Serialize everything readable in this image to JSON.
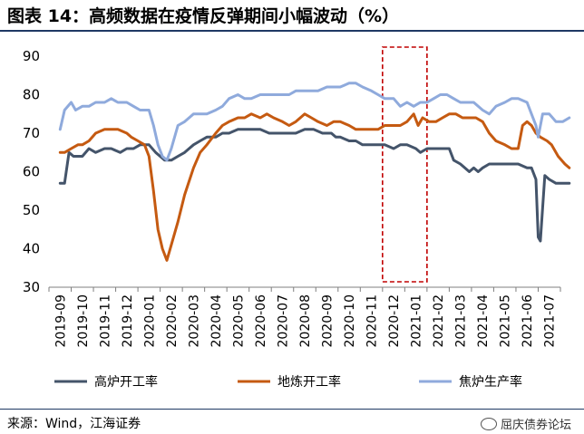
{
  "title": "图表 14：高频数据在疫情反弹期间小幅波动（%）",
  "source": "来源：Wind，江海证券",
  "watermark": "屈庆债券论坛",
  "chart_data": {
    "type": "line",
    "ylim": [
      30,
      90
    ],
    "yticks": [
      "90",
      "80",
      "70",
      "60",
      "50",
      "40",
      "30"
    ],
    "xticks": [
      "2019-09",
      "2019-10",
      "2019-11",
      "2019-12",
      "2020-01",
      "2020-02",
      "2020-03",
      "2020-04",
      "2020-05",
      "2020-06",
      "2020-07",
      "2020-08",
      "2020-09",
      "2020-10",
      "2020-11",
      "2020-12",
      "2021-01",
      "2021-02",
      "2021-03",
      "2021-04",
      "2021-05",
      "2021-06",
      "2021-07"
    ],
    "highlight": {
      "from": "2020-12",
      "to": "2021-01",
      "style": "red dashed box"
    },
    "legend_position": "bottom",
    "series": [
      {
        "name": "高炉开工率",
        "color": "#44546a",
        "points": [
          [
            0,
            57
          ],
          [
            0.2,
            57
          ],
          [
            0.4,
            65
          ],
          [
            0.6,
            64
          ],
          [
            1,
            64
          ],
          [
            1.3,
            66
          ],
          [
            1.6,
            65
          ],
          [
            2,
            66
          ],
          [
            2.3,
            66
          ],
          [
            2.7,
            65
          ],
          [
            3,
            66
          ],
          [
            3.3,
            66
          ],
          [
            3.6,
            67
          ],
          [
            4,
            67
          ],
          [
            4.3,
            65
          ],
          [
            4.5,
            64
          ],
          [
            4.7,
            63
          ],
          [
            5,
            63
          ],
          [
            5.3,
            64
          ],
          [
            5.6,
            65
          ],
          [
            5.8,
            66
          ],
          [
            6,
            67
          ],
          [
            6.3,
            68
          ],
          [
            6.6,
            69
          ],
          [
            7,
            69
          ],
          [
            7.3,
            70
          ],
          [
            7.6,
            70
          ],
          [
            8,
            71
          ],
          [
            8.3,
            71
          ],
          [
            8.6,
            71
          ],
          [
            9,
            71
          ],
          [
            9.4,
            70
          ],
          [
            9.8,
            70
          ],
          [
            10.2,
            70
          ],
          [
            10.6,
            70
          ],
          [
            11,
            71
          ],
          [
            11.4,
            71
          ],
          [
            11.8,
            70
          ],
          [
            12.2,
            70
          ],
          [
            12.4,
            69
          ],
          [
            12.6,
            69
          ],
          [
            13,
            68
          ],
          [
            13.3,
            68
          ],
          [
            13.6,
            67
          ],
          [
            14,
            67
          ],
          [
            14.3,
            67
          ],
          [
            14.6,
            67
          ],
          [
            15,
            66
          ],
          [
            15.3,
            67
          ],
          [
            15.6,
            67
          ],
          [
            16,
            66
          ],
          [
            16.2,
            65
          ],
          [
            16.5,
            66
          ],
          [
            16.8,
            66
          ],
          [
            17,
            66
          ],
          [
            17.3,
            66
          ],
          [
            17.5,
            66
          ],
          [
            17.7,
            63
          ],
          [
            18,
            62
          ],
          [
            18.2,
            61
          ],
          [
            18.4,
            60
          ],
          [
            18.6,
            61
          ],
          [
            18.8,
            60
          ],
          [
            19,
            61
          ],
          [
            19.3,
            62
          ],
          [
            19.6,
            62
          ],
          [
            20,
            62
          ],
          [
            20.3,
            62
          ],
          [
            20.6,
            62
          ],
          [
            21,
            61
          ],
          [
            21.2,
            61
          ],
          [
            21.4,
            58
          ],
          [
            21.5,
            43
          ],
          [
            21.6,
            42
          ],
          [
            21.8,
            59
          ],
          [
            22,
            58
          ],
          [
            22.3,
            57
          ],
          [
            22.6,
            57
          ],
          [
            22.9,
            57
          ]
        ]
      },
      {
        "name": "地炼开工率",
        "color": "#c55a11",
        "points": [
          [
            0,
            65
          ],
          [
            0.2,
            65
          ],
          [
            0.5,
            66
          ],
          [
            0.8,
            67
          ],
          [
            1,
            67
          ],
          [
            1.3,
            68
          ],
          [
            1.6,
            70
          ],
          [
            2,
            71
          ],
          [
            2.3,
            71
          ],
          [
            2.6,
            71
          ],
          [
            3,
            70
          ],
          [
            3.2,
            69
          ],
          [
            3.5,
            68
          ],
          [
            3.8,
            67
          ],
          [
            4,
            64
          ],
          [
            4.2,
            55
          ],
          [
            4.4,
            45
          ],
          [
            4.6,
            40
          ],
          [
            4.8,
            37
          ],
          [
            5,
            41
          ],
          [
            5.3,
            47
          ],
          [
            5.6,
            54
          ],
          [
            6,
            61
          ],
          [
            6.3,
            65
          ],
          [
            6.6,
            67
          ],
          [
            7,
            70
          ],
          [
            7.3,
            72
          ],
          [
            7.6,
            73
          ],
          [
            8,
            74
          ],
          [
            8.3,
            74
          ],
          [
            8.6,
            75
          ],
          [
            9,
            74
          ],
          [
            9.3,
            75
          ],
          [
            9.6,
            74
          ],
          [
            10,
            73
          ],
          [
            10.3,
            72
          ],
          [
            10.6,
            73
          ],
          [
            11,
            75
          ],
          [
            11.3,
            74
          ],
          [
            11.6,
            73
          ],
          [
            12,
            72
          ],
          [
            12.3,
            73
          ],
          [
            12.6,
            73
          ],
          [
            13,
            72
          ],
          [
            13.3,
            71
          ],
          [
            13.6,
            71
          ],
          [
            14,
            71
          ],
          [
            14.3,
            71
          ],
          [
            14.6,
            72
          ],
          [
            15,
            72
          ],
          [
            15.3,
            72
          ],
          [
            15.6,
            73
          ],
          [
            15.9,
            75
          ],
          [
            16.1,
            72
          ],
          [
            16.3,
            74
          ],
          [
            16.6,
            73
          ],
          [
            16.9,
            73
          ],
          [
            17.2,
            74
          ],
          [
            17.5,
            75
          ],
          [
            17.8,
            75
          ],
          [
            18.1,
            74
          ],
          [
            18.4,
            74
          ],
          [
            18.7,
            74
          ],
          [
            19,
            73
          ],
          [
            19.3,
            70
          ],
          [
            19.6,
            68
          ],
          [
            20,
            67
          ],
          [
            20.3,
            66
          ],
          [
            20.6,
            66
          ],
          [
            20.8,
            72
          ],
          [
            21,
            73
          ],
          [
            21.2,
            72
          ],
          [
            21.4,
            70
          ],
          [
            21.6,
            69
          ],
          [
            21.9,
            68
          ],
          [
            22.1,
            67
          ],
          [
            22.4,
            64
          ],
          [
            22.7,
            62
          ],
          [
            22.9,
            61
          ]
        ]
      },
      {
        "name": "焦炉生产率",
        "color": "#8faadc",
        "points": [
          [
            0,
            71
          ],
          [
            0.2,
            76
          ],
          [
            0.5,
            78
          ],
          [
            0.7,
            76
          ],
          [
            1,
            77
          ],
          [
            1.3,
            77
          ],
          [
            1.6,
            78
          ],
          [
            2,
            78
          ],
          [
            2.3,
            79
          ],
          [
            2.6,
            78
          ],
          [
            3,
            78
          ],
          [
            3.3,
            77
          ],
          [
            3.6,
            76
          ],
          [
            4,
            76
          ],
          [
            4.2,
            72
          ],
          [
            4.4,
            67
          ],
          [
            4.6,
            64
          ],
          [
            4.8,
            63
          ],
          [
            5,
            66
          ],
          [
            5.3,
            72
          ],
          [
            5.6,
            73
          ],
          [
            6,
            75
          ],
          [
            6.3,
            75
          ],
          [
            6.6,
            75
          ],
          [
            7,
            76
          ],
          [
            7.3,
            77
          ],
          [
            7.6,
            79
          ],
          [
            8,
            80
          ],
          [
            8.3,
            79
          ],
          [
            8.6,
            79
          ],
          [
            9,
            80
          ],
          [
            9.3,
            80
          ],
          [
            9.6,
            80
          ],
          [
            10,
            80
          ],
          [
            10.3,
            80
          ],
          [
            10.6,
            81
          ],
          [
            11,
            81
          ],
          [
            11.3,
            81
          ],
          [
            11.6,
            81
          ],
          [
            12,
            82
          ],
          [
            12.3,
            82
          ],
          [
            12.6,
            82
          ],
          [
            13,
            83
          ],
          [
            13.3,
            83
          ],
          [
            13.6,
            82
          ],
          [
            14,
            81
          ],
          [
            14.3,
            80
          ],
          [
            14.6,
            79
          ],
          [
            15,
            79
          ],
          [
            15.3,
            77
          ],
          [
            15.6,
            78
          ],
          [
            15.9,
            77
          ],
          [
            16.2,
            78
          ],
          [
            16.5,
            78
          ],
          [
            16.8,
            79
          ],
          [
            17.1,
            80
          ],
          [
            17.4,
            80
          ],
          [
            17.7,
            79
          ],
          [
            18,
            78
          ],
          [
            18.3,
            78
          ],
          [
            18.6,
            78
          ],
          [
            19,
            76
          ],
          [
            19.3,
            75
          ],
          [
            19.6,
            77
          ],
          [
            20,
            78
          ],
          [
            20.3,
            79
          ],
          [
            20.6,
            79
          ],
          [
            21,
            78
          ],
          [
            21.2,
            75
          ],
          [
            21.4,
            72
          ],
          [
            21.5,
            69
          ],
          [
            21.7,
            75
          ],
          [
            22,
            75
          ],
          [
            22.3,
            73
          ],
          [
            22.6,
            73
          ],
          [
            22.9,
            74
          ]
        ]
      }
    ]
  }
}
